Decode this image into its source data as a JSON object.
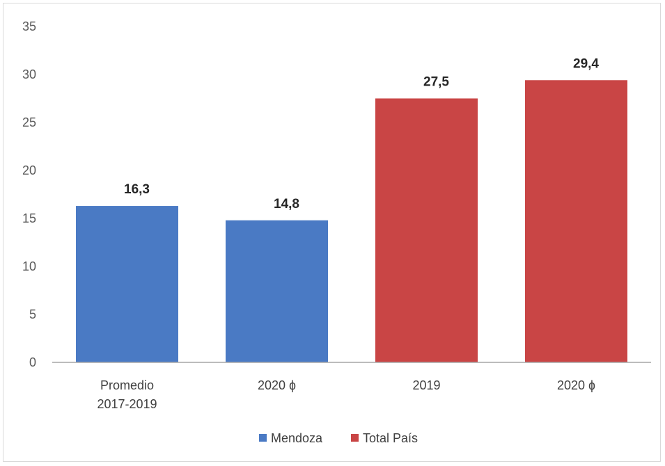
{
  "chart_data": {
    "type": "bar",
    "title": "",
    "xlabel": "",
    "ylabel": "",
    "ylim": [
      0,
      35
    ],
    "yticks": [
      0,
      5,
      10,
      15,
      20,
      25,
      30,
      35
    ],
    "grid": false,
    "legend_position": "bottom-center",
    "categories": [
      [
        "Promedio",
        "2017-2019"
      ],
      [
        "2020 ɸ"
      ],
      [
        "2019"
      ],
      [
        "2020 ɸ"
      ]
    ],
    "values": [
      16.3,
      14.8,
      27.5,
      29.4
    ],
    "data_labels": [
      "16,3",
      "14,8",
      "27,5",
      "29,4"
    ],
    "bar_series": [
      "Mendoza",
      "Mendoza",
      "Total País",
      "Total País"
    ],
    "series": [
      {
        "name": "Mendoza",
        "color": "#4a7ac4"
      },
      {
        "name": "Total País",
        "color": "#c94545"
      }
    ]
  }
}
